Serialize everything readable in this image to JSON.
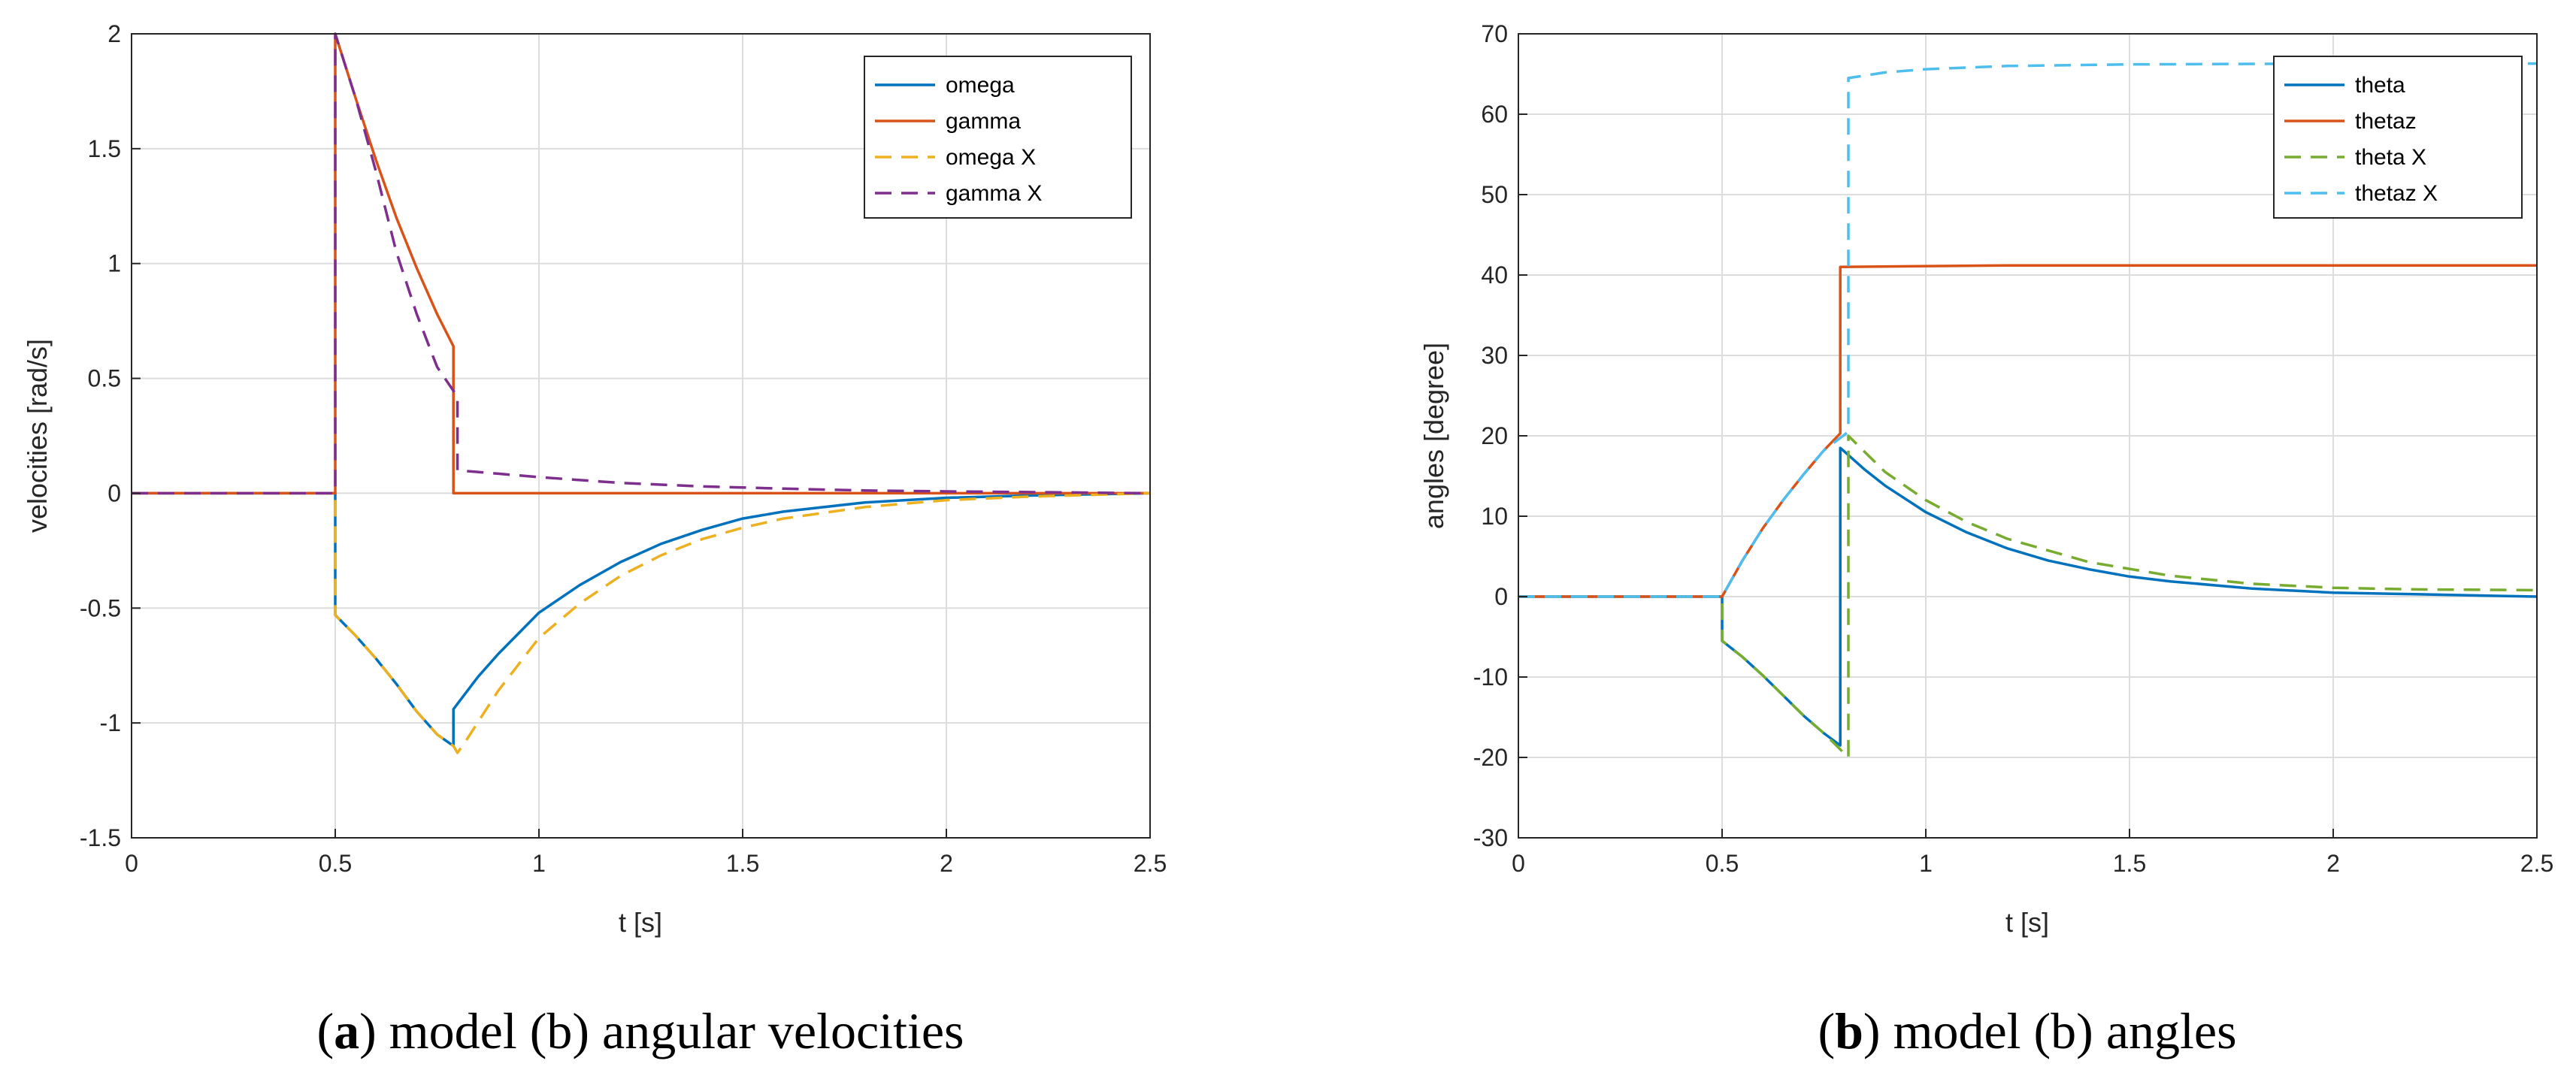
{
  "colors": {
    "omega": "#0072BD",
    "gamma": "#D95319",
    "omega_x": "#EDB120",
    "gamma_x": "#7E2F8E",
    "theta": "#0072BD",
    "thetaz": "#D95319",
    "theta_x": "#77AC30",
    "thetaz_x": "#4DBEEE",
    "grid": "#dddddd",
    "axes": "#262626"
  },
  "chart_data": [
    {
      "type": "line",
      "xlabel": "t [s]",
      "ylabel": "velocities [rad/s]",
      "xlim": [
        0,
        2.5
      ],
      "ylim": [
        -1.5,
        2
      ],
      "xticks": [
        0,
        0.5,
        1,
        1.5,
        2,
        2.5
      ],
      "xtick_labels": [
        "0",
        "0.5",
        "1",
        "1.5",
        "2",
        "2.5"
      ],
      "yticks": [
        -1.5,
        -1,
        -0.5,
        0,
        0.5,
        1,
        1.5,
        2
      ],
      "ytick_labels": [
        "-1.5",
        "-1",
        "-0.5",
        "0",
        "0.5",
        "1",
        "1.5",
        "2"
      ],
      "grid": true,
      "legend_position": "top-right",
      "caption_bold": "a",
      "caption_open": "(",
      "caption_rest": ") model (b) angular velocities",
      "series": [
        {
          "name": "omega",
          "color": "omega",
          "dash": false,
          "x": [
            0,
            0.5,
            0.5,
            0.55,
            0.6,
            0.65,
            0.7,
            0.75,
            0.79,
            0.79,
            0.85,
            0.9,
            1.0,
            1.1,
            1.2,
            1.3,
            1.4,
            1.5,
            1.6,
            1.8,
            2.0,
            2.2,
            2.5
          ],
          "y": [
            0,
            0,
            -0.53,
            -0.62,
            -0.72,
            -0.83,
            -0.95,
            -1.05,
            -1.1,
            -0.94,
            -0.8,
            -0.7,
            -0.52,
            -0.4,
            -0.3,
            -0.22,
            -0.16,
            -0.11,
            -0.08,
            -0.04,
            -0.02,
            -0.01,
            0
          ]
        },
        {
          "name": "gamma",
          "color": "gamma",
          "dash": false,
          "x": [
            0,
            0.5,
            0.5,
            0.55,
            0.6,
            0.65,
            0.7,
            0.75,
            0.79,
            0.79,
            2.5
          ],
          "y": [
            0,
            0,
            2.0,
            1.72,
            1.45,
            1.2,
            0.98,
            0.78,
            0.64,
            0,
            0
          ]
        },
        {
          "name": "omega X",
          "color": "omega_x",
          "dash": true,
          "x": [
            0,
            0.5,
            0.5,
            0.55,
            0.6,
            0.65,
            0.7,
            0.75,
            0.79,
            0.8,
            0.82,
            0.9,
            1.0,
            1.1,
            1.2,
            1.3,
            1.4,
            1.5,
            1.6,
            1.8,
            2.0,
            2.2,
            2.5
          ],
          "y": [
            0,
            0,
            -0.53,
            -0.62,
            -0.72,
            -0.83,
            -0.95,
            -1.05,
            -1.1,
            -1.13,
            -1.08,
            -0.86,
            -0.63,
            -0.48,
            -0.36,
            -0.27,
            -0.2,
            -0.15,
            -0.11,
            -0.06,
            -0.03,
            -0.015,
            0
          ]
        },
        {
          "name": "gamma X",
          "color": "gamma_x",
          "dash": true,
          "x": [
            0,
            0.5,
            0.5,
            0.55,
            0.6,
            0.65,
            0.7,
            0.75,
            0.8,
            0.8,
            0.9,
            1.0,
            1.2,
            1.4,
            1.6,
            1.8,
            2.0,
            2.2,
            2.5
          ],
          "y": [
            0,
            0,
            2.0,
            1.72,
            1.4,
            1.05,
            0.78,
            0.55,
            0.42,
            0.1,
            0.085,
            0.07,
            0.045,
            0.03,
            0.02,
            0.012,
            0.008,
            0.005,
            0
          ]
        }
      ]
    },
    {
      "type": "line",
      "xlabel": "t [s]",
      "ylabel": "angles [degree]",
      "xlim": [
        0,
        2.5
      ],
      "ylim": [
        -30,
        70
      ],
      "xticks": [
        0,
        0.5,
        1,
        1.5,
        2,
        2.5
      ],
      "xtick_labels": [
        "0",
        "0.5",
        "1",
        "1.5",
        "2",
        "2.5"
      ],
      "yticks": [
        -30,
        -20,
        -10,
        0,
        10,
        20,
        30,
        40,
        50,
        60,
        70
      ],
      "ytick_labels": [
        "-30",
        "-20",
        "-10",
        "0",
        "10",
        "20",
        "30",
        "40",
        "50",
        "60",
        "70"
      ],
      "grid": true,
      "legend_position": "top-right",
      "caption_bold": "b",
      "caption_open": "(",
      "caption_rest": ") model (b) angles",
      "series": [
        {
          "name": "theta",
          "color": "theta",
          "dash": false,
          "x": [
            0,
            0.5,
            0.5,
            0.55,
            0.6,
            0.65,
            0.7,
            0.75,
            0.79,
            0.79,
            0.85,
            0.9,
            1.0,
            1.1,
            1.2,
            1.3,
            1.4,
            1.5,
            1.6,
            1.8,
            2.0,
            2.2,
            2.5
          ],
          "y": [
            0,
            0,
            -5.5,
            -7.5,
            -9.8,
            -12.3,
            -14.8,
            -17.0,
            -18.5,
            18.5,
            15.8,
            13.8,
            10.5,
            8.0,
            6.0,
            4.5,
            3.4,
            2.5,
            1.9,
            1.0,
            0.5,
            0.3,
            0
          ]
        },
        {
          "name": "thetaz",
          "color": "thetaz",
          "dash": false,
          "x": [
            0,
            0.5,
            0.55,
            0.6,
            0.65,
            0.7,
            0.75,
            0.79,
            0.79,
            1.2,
            2.5
          ],
          "y": [
            0,
            0,
            4.5,
            8.5,
            12.0,
            15.2,
            18.2,
            20.3,
            41.0,
            41.2,
            41.2
          ]
        },
        {
          "name": "theta X",
          "color": "theta_x",
          "dash": true,
          "x": [
            0,
            0.5,
            0.5,
            0.55,
            0.6,
            0.65,
            0.7,
            0.75,
            0.81,
            0.81,
            0.9,
            1.0,
            1.1,
            1.2,
            1.4,
            1.6,
            1.8,
            2.0,
            2.2,
            2.5
          ],
          "y": [
            0,
            0,
            -5.5,
            -7.5,
            -9.8,
            -12.3,
            -14.8,
            -17.0,
            -20.0,
            20.0,
            15.5,
            12.0,
            9.3,
            7.2,
            4.3,
            2.6,
            1.6,
            1.1,
            0.9,
            0.8
          ]
        },
        {
          "name": "thetaz X",
          "color": "thetaz_x",
          "dash": true,
          "x": [
            0,
            0.5,
            0.55,
            0.6,
            0.65,
            0.7,
            0.75,
            0.81,
            0.81,
            0.9,
            1.0,
            1.2,
            1.5,
            2.0,
            2.5
          ],
          "y": [
            0,
            0,
            4.5,
            8.5,
            12.0,
            15.2,
            18.2,
            20.5,
            64.5,
            65.2,
            65.6,
            66.0,
            66.2,
            66.3,
            66.3
          ]
        }
      ]
    }
  ]
}
